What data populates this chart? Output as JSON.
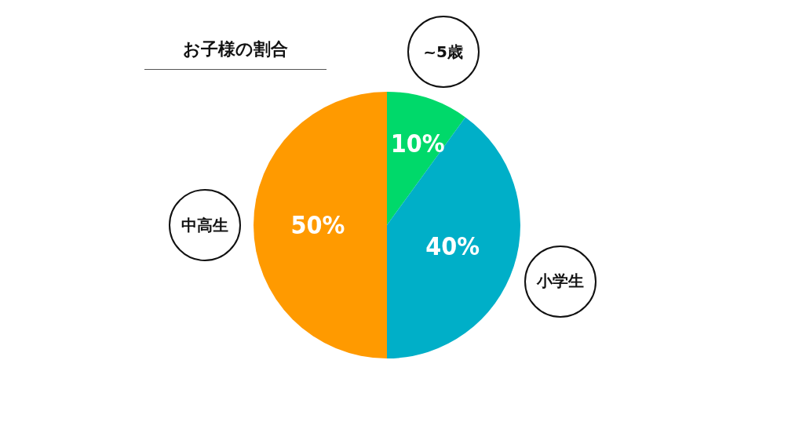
{
  "chart_data": {
    "type": "pie",
    "title": "お子様の割合",
    "categories": [
      "~5歳",
      "小学生",
      "中高生"
    ],
    "values": [
      10,
      40,
      50
    ],
    "colors": [
      "#00d96a",
      "#00afc8",
      "#ff9a00"
    ],
    "value_labels": [
      "10%",
      "40%",
      "50%"
    ]
  }
}
